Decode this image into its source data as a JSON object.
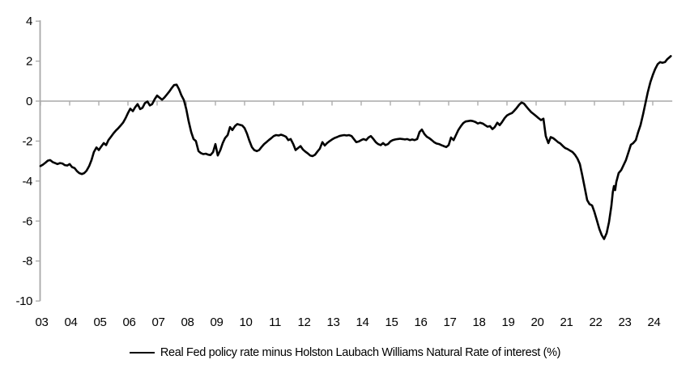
{
  "legend": {
    "label": "Real Fed policy rate minus Holston Laubach Williams Natural Rate of interest (%)"
  },
  "chart_data": {
    "type": "line",
    "title": "",
    "xlabel": "",
    "ylabel": "",
    "grid": false,
    "zero_line": true,
    "legend_position": "bottom",
    "axis_color": "#a8a8a8",
    "line_color": "#000000",
    "text_color": "#000000",
    "x_axis": {
      "min": 2003,
      "max": 2024.67,
      "tick_years": [
        2003,
        2004,
        2005,
        2006,
        2007,
        2008,
        2009,
        2010,
        2011,
        2012,
        2013,
        2014,
        2015,
        2016,
        2017,
        2018,
        2019,
        2020,
        2021,
        2022,
        2023,
        2024
      ],
      "tick_labels": [
        "03",
        "04",
        "05",
        "06",
        "07",
        "08",
        "09",
        "10",
        "11",
        "12",
        "13",
        "14",
        "15",
        "16",
        "17",
        "18",
        "19",
        "20",
        "21",
        "22",
        "23",
        "24"
      ]
    },
    "y_axis": {
      "min": -10,
      "max": 4,
      "ticks": [
        4,
        2,
        0,
        -2,
        -4,
        -6,
        -8,
        -10
      ]
    },
    "series": [
      {
        "name": "Real Fed policy rate minus Holston Laubach Williams Natural Rate of interest (%)",
        "color": "#000000",
        "points": [
          [
            2003.0,
            -3.25
          ],
          [
            2003.08,
            -3.18
          ],
          [
            2003.17,
            -3.08
          ],
          [
            2003.25,
            -2.98
          ],
          [
            2003.33,
            -2.95
          ],
          [
            2003.42,
            -3.05
          ],
          [
            2003.5,
            -3.1
          ],
          [
            2003.58,
            -3.15
          ],
          [
            2003.67,
            -3.1
          ],
          [
            2003.75,
            -3.12
          ],
          [
            2003.83,
            -3.2
          ],
          [
            2003.92,
            -3.22
          ],
          [
            2004.0,
            -3.15
          ],
          [
            2004.08,
            -3.3
          ],
          [
            2004.17,
            -3.35
          ],
          [
            2004.25,
            -3.5
          ],
          [
            2004.33,
            -3.6
          ],
          [
            2004.42,
            -3.65
          ],
          [
            2004.5,
            -3.6
          ],
          [
            2004.58,
            -3.48
          ],
          [
            2004.67,
            -3.25
          ],
          [
            2004.75,
            -2.95
          ],
          [
            2004.83,
            -2.55
          ],
          [
            2004.92,
            -2.32
          ],
          [
            2005.0,
            -2.45
          ],
          [
            2005.08,
            -2.28
          ],
          [
            2005.17,
            -2.1
          ],
          [
            2005.25,
            -2.2
          ],
          [
            2005.33,
            -1.95
          ],
          [
            2005.42,
            -1.78
          ],
          [
            2005.5,
            -1.62
          ],
          [
            2005.58,
            -1.48
          ],
          [
            2005.67,
            -1.35
          ],
          [
            2005.75,
            -1.22
          ],
          [
            2005.83,
            -1.08
          ],
          [
            2005.92,
            -0.85
          ],
          [
            2006.0,
            -0.6
          ],
          [
            2006.08,
            -0.38
          ],
          [
            2006.17,
            -0.5
          ],
          [
            2006.25,
            -0.3
          ],
          [
            2006.33,
            -0.15
          ],
          [
            2006.42,
            -0.4
          ],
          [
            2006.5,
            -0.33
          ],
          [
            2006.58,
            -0.1
          ],
          [
            2006.67,
            -0.02
          ],
          [
            2006.75,
            -0.22
          ],
          [
            2006.83,
            -0.15
          ],
          [
            2006.92,
            0.1
          ],
          [
            2007.0,
            0.28
          ],
          [
            2007.08,
            0.18
          ],
          [
            2007.17,
            0.07
          ],
          [
            2007.25,
            0.18
          ],
          [
            2007.33,
            0.32
          ],
          [
            2007.42,
            0.48
          ],
          [
            2007.5,
            0.65
          ],
          [
            2007.58,
            0.8
          ],
          [
            2007.67,
            0.82
          ],
          [
            2007.75,
            0.6
          ],
          [
            2007.83,
            0.3
          ],
          [
            2007.92,
            0.05
          ],
          [
            2008.0,
            -0.4
          ],
          [
            2008.08,
            -1.0
          ],
          [
            2008.17,
            -1.55
          ],
          [
            2008.25,
            -1.9
          ],
          [
            2008.33,
            -2.0
          ],
          [
            2008.42,
            -2.5
          ],
          [
            2008.5,
            -2.6
          ],
          [
            2008.58,
            -2.65
          ],
          [
            2008.67,
            -2.63
          ],
          [
            2008.75,
            -2.68
          ],
          [
            2008.83,
            -2.7
          ],
          [
            2008.92,
            -2.55
          ],
          [
            2009.0,
            -2.15
          ],
          [
            2009.08,
            -2.72
          ],
          [
            2009.17,
            -2.45
          ],
          [
            2009.25,
            -2.1
          ],
          [
            2009.33,
            -1.85
          ],
          [
            2009.42,
            -1.7
          ],
          [
            2009.5,
            -1.3
          ],
          [
            2009.58,
            -1.45
          ],
          [
            2009.67,
            -1.25
          ],
          [
            2009.75,
            -1.15
          ],
          [
            2009.83,
            -1.18
          ],
          [
            2009.92,
            -1.22
          ],
          [
            2010.0,
            -1.35
          ],
          [
            2010.08,
            -1.62
          ],
          [
            2010.17,
            -2.0
          ],
          [
            2010.25,
            -2.3
          ],
          [
            2010.33,
            -2.45
          ],
          [
            2010.42,
            -2.5
          ],
          [
            2010.5,
            -2.45
          ],
          [
            2010.58,
            -2.3
          ],
          [
            2010.67,
            -2.15
          ],
          [
            2010.75,
            -2.05
          ],
          [
            2010.83,
            -1.95
          ],
          [
            2010.92,
            -1.85
          ],
          [
            2011.0,
            -1.75
          ],
          [
            2011.08,
            -1.7
          ],
          [
            2011.17,
            -1.72
          ],
          [
            2011.25,
            -1.68
          ],
          [
            2011.33,
            -1.72
          ],
          [
            2011.42,
            -1.78
          ],
          [
            2011.5,
            -1.95
          ],
          [
            2011.58,
            -1.9
          ],
          [
            2011.67,
            -2.15
          ],
          [
            2011.75,
            -2.45
          ],
          [
            2011.83,
            -2.35
          ],
          [
            2011.92,
            -2.25
          ],
          [
            2012.0,
            -2.42
          ],
          [
            2012.08,
            -2.52
          ],
          [
            2012.17,
            -2.62
          ],
          [
            2012.25,
            -2.72
          ],
          [
            2012.33,
            -2.75
          ],
          [
            2012.42,
            -2.68
          ],
          [
            2012.5,
            -2.52
          ],
          [
            2012.58,
            -2.38
          ],
          [
            2012.67,
            -2.05
          ],
          [
            2012.75,
            -2.22
          ],
          [
            2012.83,
            -2.1
          ],
          [
            2012.92,
            -2.0
          ],
          [
            2013.0,
            -1.92
          ],
          [
            2013.08,
            -1.85
          ],
          [
            2013.17,
            -1.8
          ],
          [
            2013.25,
            -1.75
          ],
          [
            2013.33,
            -1.72
          ],
          [
            2013.42,
            -1.7
          ],
          [
            2013.5,
            -1.72
          ],
          [
            2013.58,
            -1.7
          ],
          [
            2013.67,
            -1.75
          ],
          [
            2013.75,
            -1.9
          ],
          [
            2013.83,
            -2.05
          ],
          [
            2013.92,
            -2.02
          ],
          [
            2014.0,
            -1.95
          ],
          [
            2014.08,
            -1.9
          ],
          [
            2014.17,
            -1.95
          ],
          [
            2014.25,
            -1.82
          ],
          [
            2014.33,
            -1.75
          ],
          [
            2014.42,
            -1.9
          ],
          [
            2014.5,
            -2.05
          ],
          [
            2014.58,
            -2.15
          ],
          [
            2014.67,
            -2.2
          ],
          [
            2014.75,
            -2.1
          ],
          [
            2014.83,
            -2.2
          ],
          [
            2014.92,
            -2.15
          ],
          [
            2015.0,
            -2.02
          ],
          [
            2015.08,
            -1.95
          ],
          [
            2015.17,
            -1.92
          ],
          [
            2015.25,
            -1.9
          ],
          [
            2015.33,
            -1.88
          ],
          [
            2015.42,
            -1.9
          ],
          [
            2015.5,
            -1.92
          ],
          [
            2015.58,
            -1.9
          ],
          [
            2015.67,
            -1.95
          ],
          [
            2015.75,
            -1.92
          ],
          [
            2015.83,
            -1.95
          ],
          [
            2015.92,
            -1.9
          ],
          [
            2016.0,
            -1.55
          ],
          [
            2016.08,
            -1.42
          ],
          [
            2016.17,
            -1.65
          ],
          [
            2016.25,
            -1.78
          ],
          [
            2016.33,
            -1.85
          ],
          [
            2016.42,
            -1.95
          ],
          [
            2016.5,
            -2.05
          ],
          [
            2016.58,
            -2.12
          ],
          [
            2016.67,
            -2.15
          ],
          [
            2016.75,
            -2.2
          ],
          [
            2016.83,
            -2.25
          ],
          [
            2016.92,
            -2.3
          ],
          [
            2017.0,
            -2.2
          ],
          [
            2017.08,
            -1.82
          ],
          [
            2017.17,
            -1.95
          ],
          [
            2017.25,
            -1.7
          ],
          [
            2017.33,
            -1.45
          ],
          [
            2017.42,
            -1.25
          ],
          [
            2017.5,
            -1.1
          ],
          [
            2017.58,
            -1.02
          ],
          [
            2017.67,
            -1.0
          ],
          [
            2017.75,
            -0.98
          ],
          [
            2017.83,
            -1.0
          ],
          [
            2017.92,
            -1.05
          ],
          [
            2018.0,
            -1.12
          ],
          [
            2018.08,
            -1.08
          ],
          [
            2018.17,
            -1.12
          ],
          [
            2018.25,
            -1.2
          ],
          [
            2018.33,
            -1.28
          ],
          [
            2018.42,
            -1.25
          ],
          [
            2018.5,
            -1.4
          ],
          [
            2018.58,
            -1.3
          ],
          [
            2018.67,
            -1.08
          ],
          [
            2018.75,
            -1.2
          ],
          [
            2018.83,
            -1.05
          ],
          [
            2018.92,
            -0.85
          ],
          [
            2019.0,
            -0.72
          ],
          [
            2019.08,
            -0.65
          ],
          [
            2019.17,
            -0.6
          ],
          [
            2019.25,
            -0.48
          ],
          [
            2019.33,
            -0.35
          ],
          [
            2019.42,
            -0.18
          ],
          [
            2019.5,
            -0.07
          ],
          [
            2019.58,
            -0.12
          ],
          [
            2019.67,
            -0.28
          ],
          [
            2019.75,
            -0.42
          ],
          [
            2019.83,
            -0.55
          ],
          [
            2019.92,
            -0.65
          ],
          [
            2020.0,
            -0.75
          ],
          [
            2020.08,
            -0.85
          ],
          [
            2020.17,
            -0.95
          ],
          [
            2020.25,
            -0.88
          ],
          [
            2020.33,
            -1.75
          ],
          [
            2020.42,
            -2.1
          ],
          [
            2020.5,
            -1.8
          ],
          [
            2020.58,
            -1.85
          ],
          [
            2020.67,
            -1.95
          ],
          [
            2020.75,
            -2.05
          ],
          [
            2020.83,
            -2.12
          ],
          [
            2020.92,
            -2.25
          ],
          [
            2021.0,
            -2.35
          ],
          [
            2021.08,
            -2.4
          ],
          [
            2021.17,
            -2.48
          ],
          [
            2021.25,
            -2.55
          ],
          [
            2021.33,
            -2.68
          ],
          [
            2021.42,
            -2.88
          ],
          [
            2021.5,
            -3.15
          ],
          [
            2021.58,
            -3.7
          ],
          [
            2021.67,
            -4.35
          ],
          [
            2021.75,
            -4.95
          ],
          [
            2021.83,
            -5.15
          ],
          [
            2021.92,
            -5.22
          ],
          [
            2022.0,
            -5.55
          ],
          [
            2022.08,
            -5.95
          ],
          [
            2022.17,
            -6.4
          ],
          [
            2022.25,
            -6.7
          ],
          [
            2022.33,
            -6.9
          ],
          [
            2022.42,
            -6.6
          ],
          [
            2022.5,
            -6.05
          ],
          [
            2022.58,
            -5.25
          ],
          [
            2022.63,
            -4.55
          ],
          [
            2022.67,
            -4.25
          ],
          [
            2022.71,
            -4.45
          ],
          [
            2022.75,
            -4.05
          ],
          [
            2022.83,
            -3.6
          ],
          [
            2022.92,
            -3.45
          ],
          [
            2023.0,
            -3.2
          ],
          [
            2023.08,
            -2.95
          ],
          [
            2023.17,
            -2.55
          ],
          [
            2023.25,
            -2.18
          ],
          [
            2023.33,
            -2.1
          ],
          [
            2023.42,
            -1.95
          ],
          [
            2023.5,
            -1.55
          ],
          [
            2023.58,
            -1.2
          ],
          [
            2023.67,
            -0.65
          ],
          [
            2023.75,
            -0.1
          ],
          [
            2023.83,
            0.45
          ],
          [
            2023.92,
            0.95
          ],
          [
            2024.0,
            1.3
          ],
          [
            2024.08,
            1.6
          ],
          [
            2024.17,
            1.85
          ],
          [
            2024.25,
            1.95
          ],
          [
            2024.33,
            1.92
          ],
          [
            2024.42,
            1.95
          ],
          [
            2024.5,
            2.1
          ],
          [
            2024.58,
            2.2
          ],
          [
            2024.62,
            2.25
          ]
        ]
      }
    ]
  }
}
